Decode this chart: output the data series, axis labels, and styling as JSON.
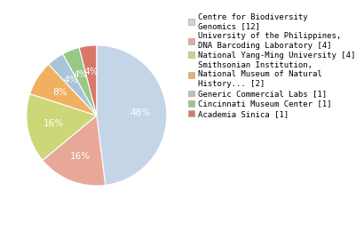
{
  "labels": [
    "Centre for Biodiversity\nGenomics [12]",
    "University of the Philippines,\nDNA Barcoding Laboratory [4]",
    "National Yang-Ming University [4]",
    "Smithsonian Institution,\nNational Museum of Natural\nHistory... [2]",
    "Generic Commercial Labs [1]",
    "Cincinnati Museum Center [1]",
    "Academia Sinica [1]"
  ],
  "values": [
    12,
    4,
    4,
    2,
    1,
    1,
    1
  ],
  "colors": [
    "#c5d5e8",
    "#e8a898",
    "#ccd878",
    "#f0b060",
    "#a8c4d8",
    "#98c888",
    "#d87868"
  ],
  "pct_labels": [
    "48%",
    "16%",
    "16%",
    "8%",
    "4%",
    "4%",
    "4%"
  ],
  "startangle": 90,
  "counterclock": false,
  "text_color": "white",
  "legend_fontsize": 6.5,
  "pct_fontsize": 7.5
}
